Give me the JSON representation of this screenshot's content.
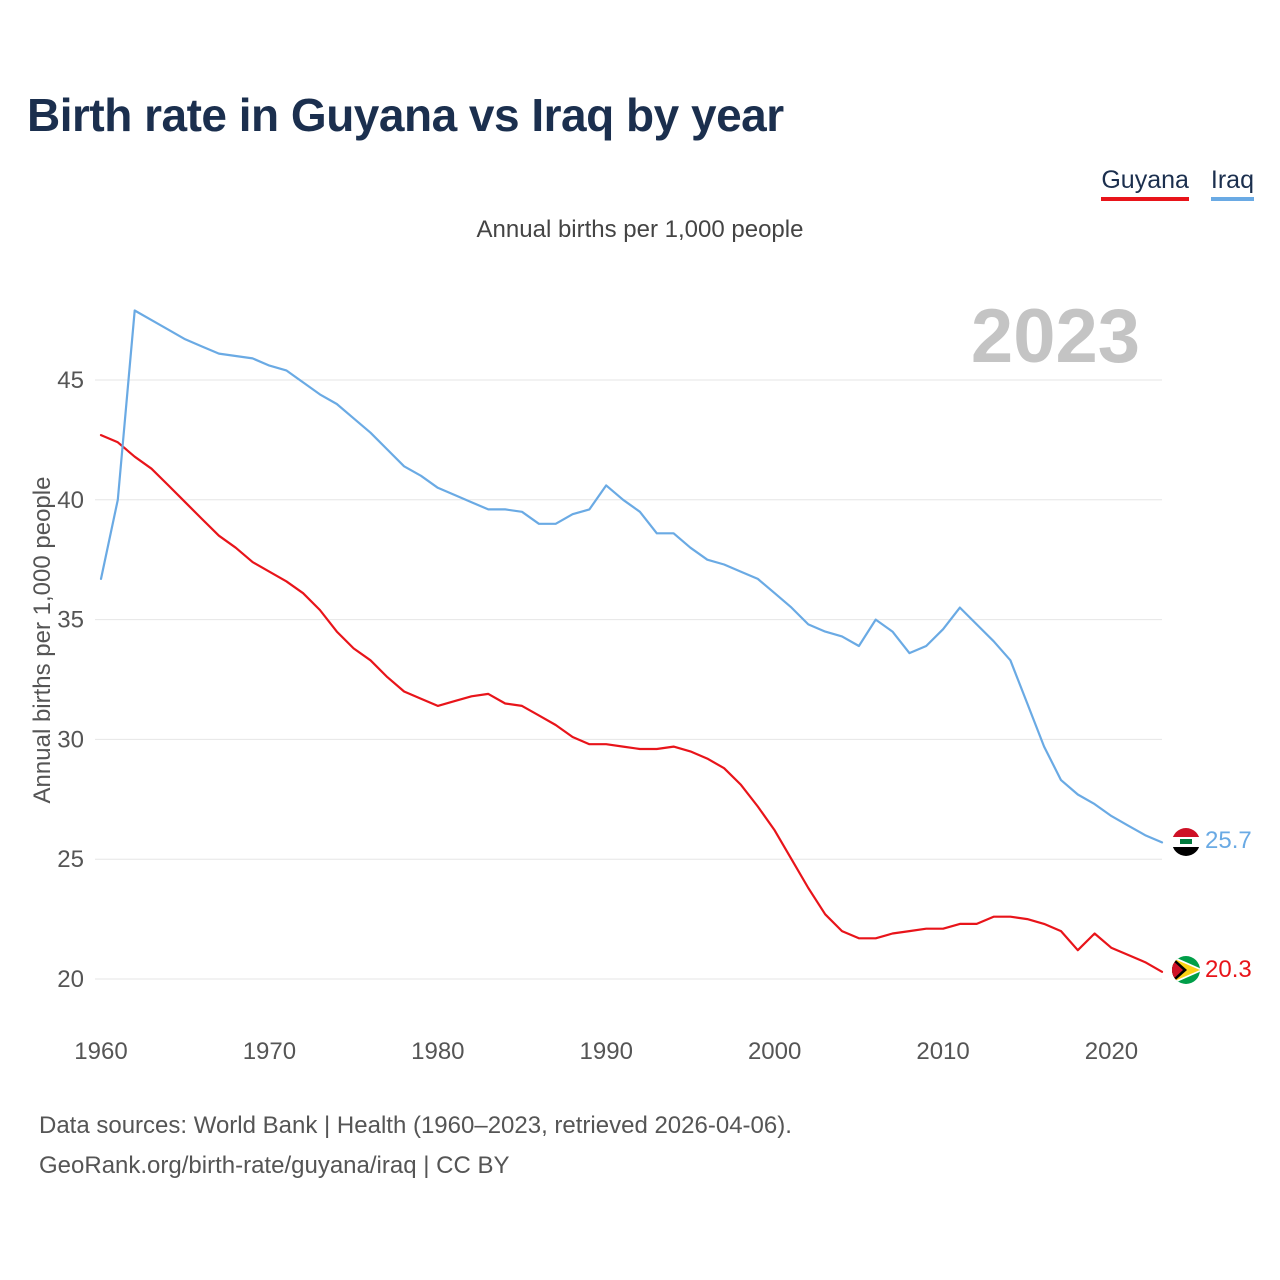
{
  "title": "Birth rate in Guyana vs Iraq by year",
  "subtitle": "Annual births per 1,000 people",
  "legend": [
    {
      "label": "Guyana",
      "color": "#e8141a"
    },
    {
      "label": "Iraq",
      "color": "#6aaae4"
    }
  ],
  "year_watermark": "2023",
  "footer": {
    "line1": "Data sources: World Bank | Health (1960–2023, retrieved 2026-04-06).",
    "line2": "GeoRank.org/birth-rate/guyana/iraq | CC BY"
  },
  "end_labels": {
    "guyana": "20.3",
    "iraq": "25.7"
  },
  "chart_data": {
    "type": "line",
    "title": "Birth rate in Guyana vs Iraq by year",
    "xlabel": "",
    "ylabel": "Annual births per 1,000 people",
    "xlim": [
      1960,
      2023
    ],
    "ylim": [
      18,
      48
    ],
    "x_ticks": [
      1960,
      1970,
      1980,
      1990,
      2000,
      2010,
      2020
    ],
    "y_ticks": [
      20,
      25,
      30,
      35,
      40,
      45
    ],
    "x": [
      1960,
      1961,
      1962,
      1963,
      1964,
      1965,
      1966,
      1967,
      1968,
      1969,
      1970,
      1971,
      1972,
      1973,
      1974,
      1975,
      1976,
      1977,
      1978,
      1979,
      1980,
      1981,
      1982,
      1983,
      1984,
      1985,
      1986,
      1987,
      1988,
      1989,
      1990,
      1991,
      1992,
      1993,
      1994,
      1995,
      1996,
      1997,
      1998,
      1999,
      2000,
      2001,
      2002,
      2003,
      2004,
      2005,
      2006,
      2007,
      2008,
      2009,
      2010,
      2011,
      2012,
      2013,
      2014,
      2015,
      2016,
      2017,
      2018,
      2019,
      2020,
      2021,
      2022,
      2023
    ],
    "series": [
      {
        "name": "Guyana",
        "color": "#e8141a",
        "values": [
          42.7,
          42.4,
          41.8,
          41.3,
          40.6,
          39.9,
          39.2,
          38.5,
          38.0,
          37.4,
          37.0,
          36.6,
          36.1,
          35.4,
          34.5,
          33.8,
          33.3,
          32.6,
          32.0,
          31.7,
          31.4,
          31.6,
          31.8,
          31.9,
          31.5,
          31.4,
          31.0,
          30.6,
          30.1,
          29.8,
          29.8,
          29.7,
          29.6,
          29.6,
          29.7,
          29.5,
          29.2,
          28.8,
          28.1,
          27.2,
          26.2,
          25.0,
          23.8,
          22.7,
          22.0,
          21.7,
          21.7,
          21.9,
          22.0,
          22.1,
          22.1,
          22.3,
          22.3,
          22.6,
          22.6,
          22.5,
          22.3,
          22.0,
          21.2,
          21.9,
          21.3,
          21.0,
          20.7,
          20.3
        ]
      },
      {
        "name": "Iraq",
        "color": "#6aaae4",
        "values": [
          36.7,
          40.0,
          47.9,
          47.5,
          47.1,
          46.7,
          46.4,
          46.1,
          46.0,
          45.9,
          45.6,
          45.4,
          44.9,
          44.4,
          44.0,
          43.4,
          42.8,
          42.1,
          41.4,
          41.0,
          40.5,
          40.2,
          39.9,
          39.6,
          39.6,
          39.5,
          39.0,
          39.0,
          39.4,
          39.6,
          40.6,
          40.0,
          39.5,
          38.6,
          38.6,
          38.0,
          37.5,
          37.3,
          37.0,
          36.7,
          36.1,
          35.5,
          34.8,
          34.5,
          34.3,
          33.9,
          35.0,
          34.5,
          33.6,
          33.9,
          34.6,
          35.5,
          34.8,
          34.1,
          33.3,
          31.5,
          29.7,
          28.3,
          27.7,
          27.3,
          26.8,
          26.4,
          26.0,
          25.7
        ]
      }
    ]
  }
}
